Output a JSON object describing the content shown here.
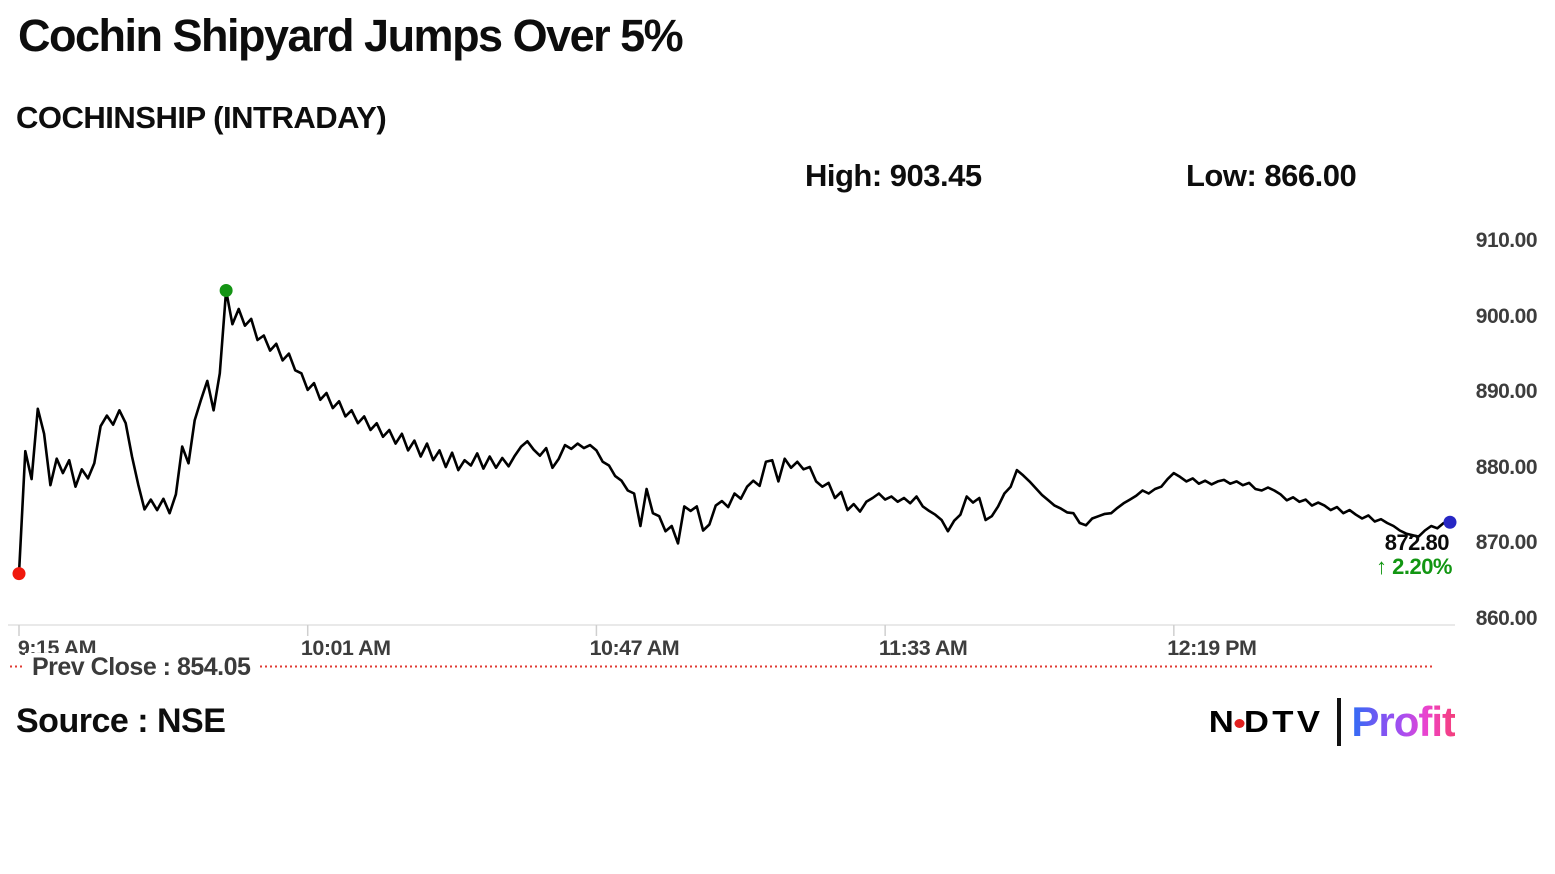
{
  "title": "Cochin Shipyard Jumps Over 5%",
  "subtitle": "COCHINSHIP (INTRADAY)",
  "stats": {
    "high": "High: 903.45",
    "low": "Low: 866.00"
  },
  "current": {
    "price": "872.80",
    "change": "↑ 2.20%"
  },
  "prev_close_label": "Prev Close : 854.05",
  "source": "Source : NSE",
  "logo": {
    "ndtv": {
      "n": "N",
      "dtv": "DTV"
    },
    "profit": "Profit"
  },
  "colors": {
    "line": "#000000",
    "up_green": "#129612",
    "prev_close_red": "#e03b33",
    "start_dot_red": "#f0180c",
    "high_dot_green": "#149414",
    "last_dot_blue": "#2727c4",
    "axis_line": "#e2e2e2",
    "tick": "#cfcfcf",
    "axis_label": "#3d3d3d"
  },
  "chart_data": {
    "type": "line",
    "title": "COCHINSHIP (INTRADAY)",
    "xlabel": "",
    "ylabel": "",
    "x_axis": {
      "tick_labels": [
        "9:15 AM",
        "10:01 AM",
        "10:47 AM",
        "11:33 AM",
        "12:19 PM"
      ],
      "tick_minutes": [
        0,
        46,
        92,
        138,
        184
      ],
      "interval_minutes": 1,
      "total_minutes": 228
    },
    "y_axis": {
      "tick_labels": [
        "910.00",
        "900.00",
        "890.00",
        "880.00",
        "870.00",
        "860.00"
      ],
      "tick_values": [
        910,
        900,
        890,
        880,
        870,
        860
      ],
      "ylim": [
        860,
        910
      ]
    },
    "grid": false,
    "legend": false,
    "high": 903.45,
    "low": 866.0,
    "last": 872.8,
    "prev_close": 854.05,
    "change_pct": 2.2,
    "markers": {
      "low_minute": 0,
      "high_minute": 33,
      "last_minute": 228
    },
    "series": [
      {
        "name": "COCHINSHIP",
        "prices": [
          866.0,
          882.2,
          878.5,
          887.8,
          884.5,
          877.7,
          881.2,
          879.3,
          881.0,
          877.5,
          879.8,
          878.6,
          880.6,
          885.5,
          886.9,
          885.7,
          887.6,
          885.9,
          881.5,
          877.8,
          874.5,
          875.8,
          874.4,
          875.9,
          874.0,
          876.5,
          882.8,
          880.6,
          886.3,
          889.0,
          891.5,
          887.6,
          892.5,
          903.45,
          899.0,
          901.0,
          898.8,
          899.7,
          896.9,
          897.5,
          895.5,
          896.4,
          894.2,
          895.1,
          892.9,
          892.5,
          890.3,
          891.2,
          889.0,
          889.9,
          887.9,
          888.8,
          886.8,
          887.6,
          885.9,
          886.8,
          885.0,
          885.9,
          884.1,
          885.0,
          883.2,
          884.5,
          882.3,
          883.6,
          881.5,
          883.2,
          881.0,
          882.3,
          880.1,
          882.0,
          879.7,
          881.0,
          880.3,
          881.9,
          879.9,
          881.5,
          880.0,
          881.3,
          880.2,
          881.6,
          882.8,
          883.5,
          882.4,
          881.6,
          882.6,
          880.0,
          881.2,
          883.0,
          882.5,
          883.2,
          882.6,
          883.0,
          882.3,
          880.8,
          880.3,
          878.9,
          878.3,
          877.0,
          876.6,
          872.3,
          877.2,
          874.0,
          873.6,
          871.6,
          872.3,
          870.0,
          874.9,
          874.3,
          874.9,
          871.7,
          872.5,
          875.0,
          875.6,
          874.8,
          876.6,
          875.9,
          877.5,
          878.3,
          877.6,
          880.8,
          881.0,
          878.2,
          881.2,
          880.0,
          880.8,
          879.8,
          880.1,
          878.2,
          877.5,
          878.0,
          876.0,
          876.8,
          874.4,
          875.2,
          874.2,
          875.5,
          876.0,
          876.6,
          875.8,
          876.2,
          875.5,
          876.0,
          875.3,
          876.2,
          874.9,
          874.3,
          873.8,
          873.1,
          871.6,
          873.0,
          873.8,
          876.2,
          875.4,
          876.0,
          873.1,
          873.6,
          874.9,
          876.6,
          877.5,
          879.7,
          879.0,
          878.2,
          877.3,
          876.4,
          875.7,
          875.0,
          874.6,
          874.1,
          874.0,
          872.7,
          872.4,
          873.3,
          873.6,
          873.9,
          874.0,
          874.7,
          875.3,
          875.8,
          876.3,
          877.0,
          876.6,
          877.2,
          877.5,
          878.5,
          879.3,
          878.8,
          878.2,
          878.6,
          877.9,
          878.3,
          877.8,
          878.2,
          878.4,
          877.9,
          878.2,
          877.7,
          878.0,
          877.2,
          877.0,
          877.4,
          877.0,
          876.5,
          875.7,
          876.1,
          875.5,
          875.8,
          875.0,
          875.4,
          875.0,
          874.4,
          874.8,
          874.0,
          874.4,
          873.8,
          873.3,
          873.7,
          872.9,
          873.2,
          872.7,
          872.3,
          871.7,
          871.3,
          871.1,
          870.9,
          871.7,
          872.3,
          872.0,
          872.7,
          872.8
        ]
      }
    ]
  }
}
